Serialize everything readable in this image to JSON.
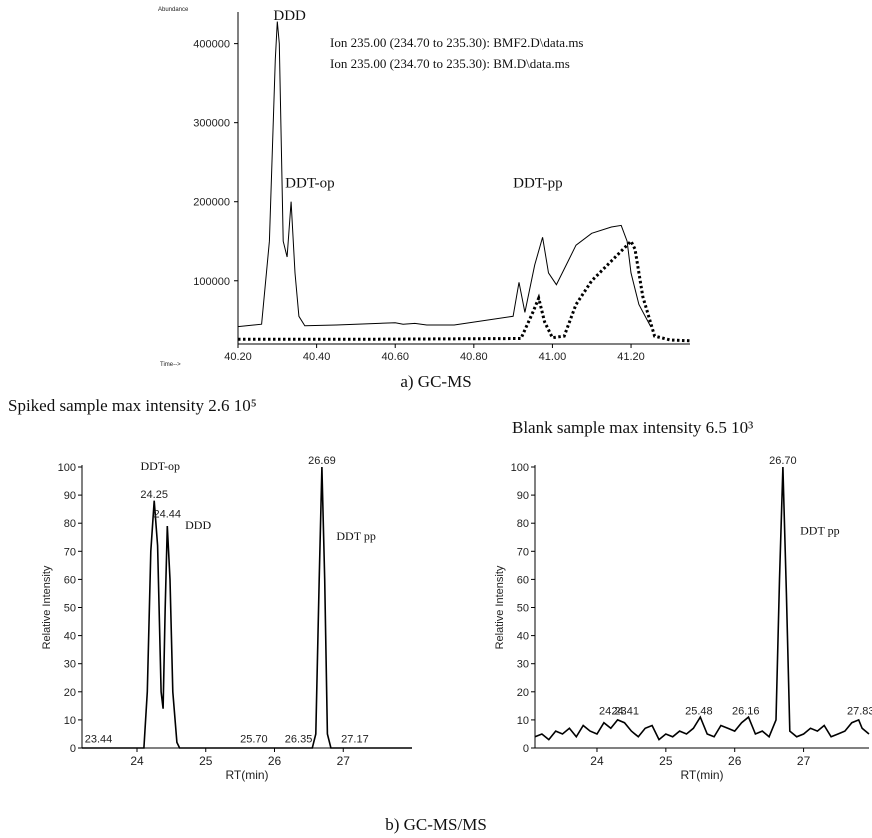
{
  "captions": {
    "top": "a) GC-MS",
    "bottom": "b) GC-MS/MS"
  },
  "chart_data": [
    {
      "type": "line",
      "ylabel": "Abundance",
      "xlabel": "Time-->",
      "xlim": [
        40.2,
        41.35
      ],
      "ylim": [
        20000,
        440000
      ],
      "xticks": [
        "40.20",
        "40.40",
        "40.60",
        "40.80",
        "41.00",
        "41.20"
      ],
      "yticks": [
        "100000",
        "200000",
        "300000",
        "400000"
      ],
      "legend": [
        "Ion 235.00 (234.70 to 235.30): BMF2.D\\data.ms",
        "Ion 235.00 (234.70 to 235.30): BM.D\\data.ms"
      ],
      "annotations": [
        {
          "text": "DDD",
          "x": 40.29,
          "y": 430000
        },
        {
          "text": "DDT-op",
          "x": 40.32,
          "y": 218000
        },
        {
          "text": "DDT-pp",
          "x": 40.9,
          "y": 218000
        }
      ],
      "series": [
        {
          "style": "solid",
          "x": [
            40.2,
            40.26,
            40.28,
            40.295,
            40.3,
            40.305,
            40.315,
            40.325,
            40.335,
            40.345,
            40.355,
            40.37,
            40.45,
            40.6,
            40.62,
            40.65,
            40.68,
            40.75,
            40.9,
            40.915,
            40.93,
            40.955,
            40.975,
            40.99,
            41.01,
            41.04,
            41.06,
            41.1,
            41.15,
            41.175,
            41.19,
            41.2,
            41.22,
            41.25
          ],
          "y": [
            42000,
            45000,
            150000,
            380000,
            428000,
            400000,
            150000,
            130000,
            200000,
            110000,
            55000,
            43000,
            44000,
            47000,
            45000,
            46000,
            44000,
            44000,
            55000,
            98000,
            60000,
            120000,
            155000,
            110000,
            95000,
            125000,
            145000,
            160000,
            168000,
            170000,
            150000,
            110000,
            70000,
            42000
          ]
        },
        {
          "style": "dotted",
          "x": [
            40.2,
            40.5,
            40.92,
            40.95,
            40.965,
            40.98,
            41.0,
            41.03,
            41.06,
            41.1,
            41.15,
            41.18,
            41.2,
            41.21,
            41.23,
            41.26,
            41.3,
            41.35
          ],
          "y": [
            26000,
            26000,
            27000,
            60000,
            78000,
            48000,
            28000,
            30000,
            70000,
            100000,
            125000,
            140000,
            150000,
            140000,
            80000,
            30000,
            25000,
            24000
          ]
        }
      ]
    },
    {
      "type": "line",
      "title": "Spiked sample max intensity 2.6 10⁵",
      "ylabel": "Relative Intensity",
      "xlabel": "RT(min)",
      "xlim": [
        23.2,
        28.0
      ],
      "ylim": [
        0,
        100
      ],
      "xticks": [
        "24",
        "25",
        "26",
        "27"
      ],
      "yticks": [
        "0",
        "10",
        "20",
        "30",
        "40",
        "50",
        "60",
        "70",
        "80",
        "90",
        "100"
      ],
      "peak_labels": [
        {
          "text": "23.44",
          "x": 23.44,
          "y": 2
        },
        {
          "text": "24.25",
          "x": 24.25,
          "y": 89
        },
        {
          "text": "24.44",
          "x": 24.44,
          "y": 82
        },
        {
          "text": "25.70",
          "x": 25.7,
          "y": 2
        },
        {
          "text": "26.35",
          "x": 26.35,
          "y": 2
        },
        {
          "text": "26.69",
          "x": 26.69,
          "y": 101
        },
        {
          "text": "27.17",
          "x": 27.17,
          "y": 2
        }
      ],
      "annotations": [
        {
          "text": "DDT-op",
          "x": 24.05,
          "y": 99
        },
        {
          "text": "DDD",
          "x": 24.7,
          "y": 78
        },
        {
          "text": "DDT pp",
          "x": 26.9,
          "y": 74
        }
      ],
      "series": [
        {
          "x": [
            23.2,
            24.1,
            24.15,
            24.2,
            24.25,
            24.3,
            24.35,
            24.38,
            24.41,
            24.44,
            24.48,
            24.52,
            24.58,
            24.62,
            26.55,
            26.6,
            26.65,
            26.69,
            26.73,
            26.77,
            26.82,
            28.0
          ],
          "y": [
            0,
            0,
            20,
            70,
            88,
            72,
            20,
            14,
            50,
            79,
            60,
            20,
            2,
            0,
            0,
            5,
            60,
            100,
            60,
            5,
            0,
            0
          ]
        }
      ]
    },
    {
      "type": "line",
      "title": "Blank sample max intensity 6.5 10³",
      "ylabel": "Relative Intensity",
      "xlabel": "RT(min)",
      "xlim": [
        23.1,
        27.95
      ],
      "ylim": [
        0,
        100
      ],
      "xticks": [
        "24",
        "25",
        "26",
        "27"
      ],
      "yticks": [
        "0",
        "10",
        "20",
        "30",
        "40",
        "50",
        "60",
        "70",
        "80",
        "90",
        "100"
      ],
      "peak_labels": [
        {
          "text": "24.23",
          "x": 24.23,
          "y": 12
        },
        {
          "text": "24.41",
          "x": 24.41,
          "y": 12
        },
        {
          "text": "25.48",
          "x": 25.48,
          "y": 12
        },
        {
          "text": "26.16",
          "x": 26.16,
          "y": 12
        },
        {
          "text": "26.70",
          "x": 26.7,
          "y": 101
        },
        {
          "text": "27.83",
          "x": 27.83,
          "y": 12
        }
      ],
      "annotations": [
        {
          "text": "DDT pp",
          "x": 26.95,
          "y": 76
        }
      ],
      "series": [
        {
          "x": [
            23.1,
            23.2,
            23.3,
            23.4,
            23.5,
            23.6,
            23.7,
            23.8,
            23.9,
            24.0,
            24.1,
            24.2,
            24.3,
            24.4,
            24.5,
            24.6,
            24.7,
            24.8,
            24.9,
            25.0,
            25.1,
            25.2,
            25.3,
            25.4,
            25.5,
            25.6,
            25.7,
            25.8,
            25.9,
            26.0,
            26.1,
            26.2,
            26.3,
            26.4,
            26.5,
            26.6,
            26.65,
            26.7,
            26.75,
            26.8,
            26.9,
            27.0,
            27.1,
            27.2,
            27.3,
            27.4,
            27.5,
            27.6,
            27.7,
            27.8,
            27.85,
            27.95
          ],
          "y": [
            4,
            5,
            3,
            6,
            5,
            7,
            4,
            8,
            6,
            5,
            9,
            7,
            10,
            9,
            6,
            4,
            7,
            8,
            3,
            5,
            4,
            6,
            5,
            7,
            11,
            5,
            4,
            8,
            7,
            6,
            9,
            11,
            5,
            6,
            4,
            10,
            60,
            100,
            55,
            6,
            4,
            5,
            7,
            6,
            8,
            4,
            5,
            6,
            9,
            10,
            7,
            5
          ]
        }
      ]
    }
  ]
}
